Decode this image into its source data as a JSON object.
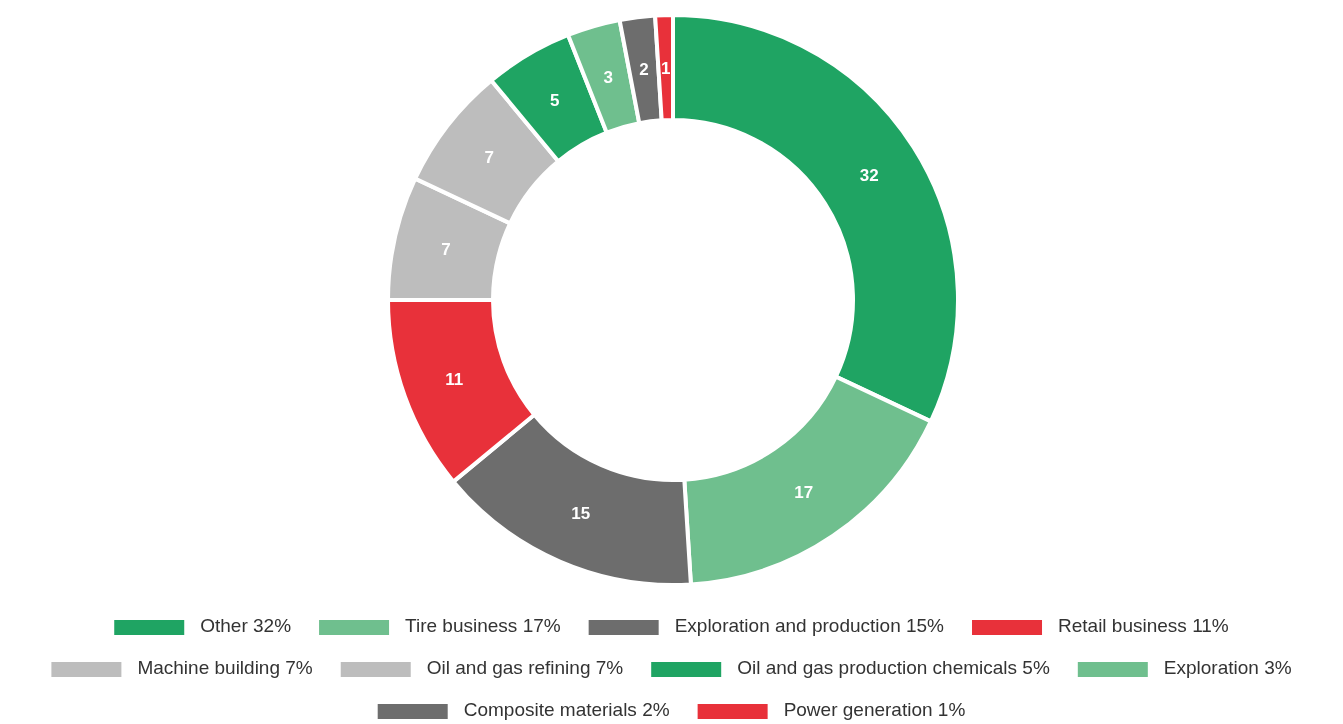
{
  "chart_data": {
    "type": "donut",
    "categories": [
      "Other 32%",
      "Tire business 17%",
      "Exploration and production 15%",
      "Retail business 11%",
      "Machine building 7%",
      "Oil and gas refining 7%",
      "Oil and gas production chemicals 5%",
      "Exploration 3%",
      "Composite materials 2%",
      "Power generation 1%"
    ],
    "values": [
      32,
      17,
      15,
      11,
      7,
      7,
      5,
      3,
      2,
      1
    ],
    "colors": [
      "#1fa463",
      "#6fbf8e",
      "#6d6d6d",
      "#e8313a",
      "#bdbdbd",
      "#bdbdbd",
      "#1fa463",
      "#6fbf8e",
      "#6d6d6d",
      "#e8313a"
    ],
    "data_labels": true,
    "legend": "bottom"
  }
}
